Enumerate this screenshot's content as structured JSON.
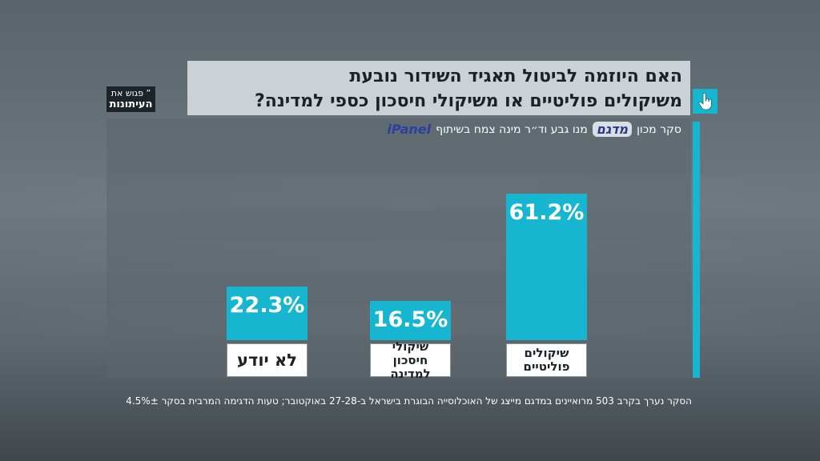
{
  "title": {
    "line1": "האם היוזמה לביטול תאגיד השידור נובעת",
    "line2": "משיקולים פוליטיים או משיקולי חיסכון כספי למדינה?"
  },
  "logo": {
    "line1": "פגוש את",
    "line2": "העיתונות",
    "quote_mark": "”"
  },
  "source": {
    "prefix": "סקר מכון",
    "madgam": "מדגם",
    "middle": "מנו גבע וד״ר מינה צמח בשיתוף",
    "ipanel": "iPanel"
  },
  "footnote": "הסקר נערך בקרב 503 מרואיינים במדגם מייצג של האוכלוסייה הבוגרת בישראל ב-27-28 באוקטובר; טעות הדגימה המרבית בסקר 4.5%±",
  "colors": {
    "accent": "#17b6d0",
    "title_bg": "#cbd1d5",
    "label_bg": "#ffffff"
  },
  "chart_data": {
    "type": "bar",
    "title": "האם היוזמה לביטול תאגיד השידור נובעת משיקולים פוליטיים או משיקולי חיסכון כספי למדינה?",
    "categories": [
      {
        "line1": "לא יודע",
        "line2": ""
      },
      {
        "line1": "שיקולי",
        "line2": "חיסכון למדינה"
      },
      {
        "line1": "שיקולים",
        "line2": "פוליטיים"
      }
    ],
    "values": [
      22.3,
      16.5,
      61.2
    ],
    "value_labels": [
      "22.3%",
      "16.5%",
      "61.2%"
    ],
    "unit": "%",
    "ylim": [
      0,
      61.2
    ],
    "grid": false,
    "legend": "none"
  }
}
